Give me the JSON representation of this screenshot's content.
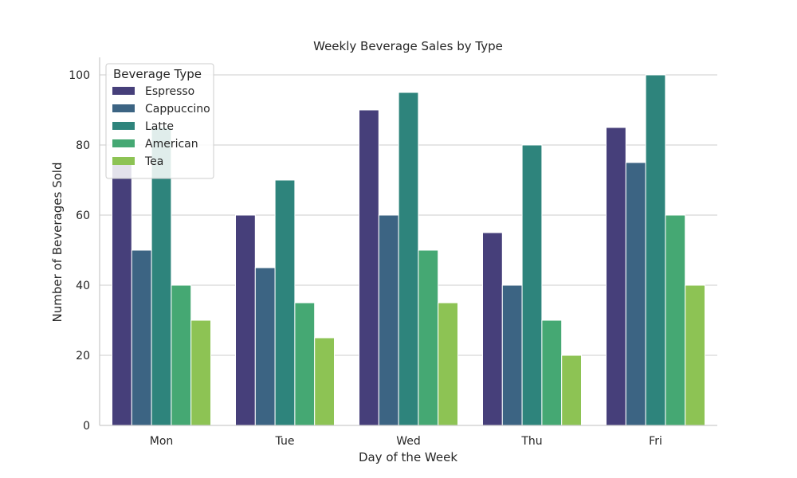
{
  "chart_data": {
    "type": "bar",
    "title": "Weekly Beverage Sales by Type",
    "xlabel": "Day of the Week",
    "ylabel": "Number of Beverages Sold",
    "categories": [
      "Mon",
      "Tue",
      "Wed",
      "Thu",
      "Fri"
    ],
    "ylim": [
      0,
      105
    ],
    "yticks": [
      0,
      20,
      40,
      60,
      80,
      100
    ],
    "grid": true,
    "legend": {
      "title": "Beverage Type",
      "position": "top-left"
    },
    "series": [
      {
        "name": "Espresso",
        "color": "#463f7a",
        "values": [
          75,
          60,
          90,
          55,
          85
        ]
      },
      {
        "name": "Cappuccino",
        "color": "#3c6483",
        "values": [
          50,
          45,
          60,
          40,
          75
        ]
      },
      {
        "name": "Latte",
        "color": "#2e847c",
        "values": [
          85,
          70,
          95,
          80,
          100
        ]
      },
      {
        "name": "American",
        "color": "#45a873",
        "values": [
          40,
          35,
          50,
          30,
          60
        ]
      },
      {
        "name": "Tea",
        "color": "#8dc354",
        "values": [
          30,
          25,
          35,
          20,
          40
        ]
      }
    ]
  }
}
